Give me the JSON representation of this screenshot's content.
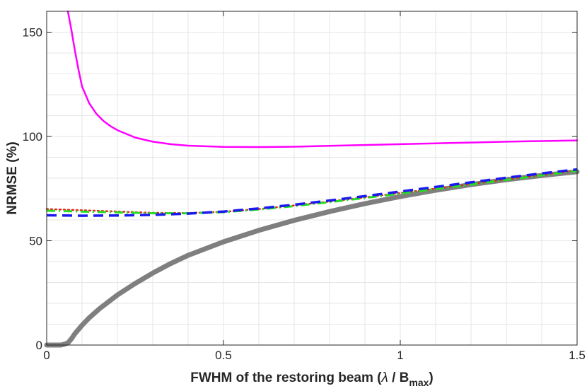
{
  "chart_data": {
    "type": "line",
    "title": "",
    "xlabel_main": "FWHM of the restoring beam (",
    "xlabel_lambda": "λ",
    "xlabel_mid": " / B",
    "xlabel_sub": "max",
    "xlabel_end": ")",
    "ylabel": "NRMSE (%)",
    "xlim": [
      0,
      1.5
    ],
    "ylim": [
      0,
      160
    ],
    "grid": true,
    "xticks": [
      0,
      0.5,
      1,
      1.5
    ],
    "xtick_labels": [
      "0",
      "0.5",
      "1",
      "1.5"
    ],
    "yticks": [
      0,
      50,
      100,
      150
    ],
    "ytick_labels": [
      "0",
      "50",
      "100",
      "150"
    ],
    "series": [
      {
        "name": "magenta",
        "color": "#ff00ff",
        "style": "solid",
        "x": [
          0.06,
          0.07,
          0.08,
          0.09,
          0.1,
          0.12,
          0.14,
          0.16,
          0.18,
          0.2,
          0.25,
          0.3,
          0.35,
          0.4,
          0.5,
          0.6,
          0.7,
          0.8,
          0.9,
          1.0,
          1.1,
          1.2,
          1.3,
          1.4,
          1.5
        ],
        "y": [
          160,
          151,
          141,
          132,
          124,
          116,
          111,
          107.5,
          105,
          103,
          99.5,
          97.5,
          96.3,
          95.6,
          95.0,
          94.9,
          95.1,
          95.5,
          95.9,
          96.3,
          96.7,
          97.1,
          97.5,
          97.8,
          98.1
        ]
      },
      {
        "name": "red",
        "color": "#e8201a",
        "style": "dotted",
        "x": [
          0,
          0.1,
          0.2,
          0.3,
          0.4,
          0.5,
          0.6,
          0.7,
          0.8,
          0.9,
          1.0,
          1.1,
          1.2,
          1.3,
          1.4,
          1.5
        ],
        "y": [
          65.2,
          64.6,
          64.0,
          63.4,
          63.3,
          63.9,
          65.2,
          66.9,
          68.8,
          70.8,
          72.9,
          75.0,
          77.2,
          79.4,
          81.6,
          83.8
        ]
      },
      {
        "name": "green",
        "color": "#22e022",
        "style": "dashdot",
        "x": [
          0,
          0.1,
          0.2,
          0.3,
          0.4,
          0.5,
          0.6,
          0.7,
          0.8,
          0.9,
          1.0,
          1.1,
          1.2,
          1.3,
          1.4,
          1.5
        ],
        "y": [
          64.4,
          64.0,
          63.6,
          63.2,
          63.2,
          63.7,
          65.0,
          66.6,
          68.5,
          70.5,
          72.6,
          74.8,
          77.0,
          79.2,
          81.4,
          83.6
        ]
      },
      {
        "name": "blue",
        "color": "#1a1aee",
        "style": "dashed",
        "x": [
          0,
          0.1,
          0.2,
          0.3,
          0.4,
          0.5,
          0.6,
          0.7,
          0.8,
          0.9,
          1.0,
          1.1,
          1.2,
          1.3,
          1.4,
          1.5
        ],
        "y": [
          62.2,
          62.0,
          62.1,
          62.4,
          63.0,
          64.0,
          65.5,
          67.3,
          69.3,
          71.4,
          73.6,
          75.8,
          78.0,
          80.2,
          82.3,
          84.2
        ]
      },
      {
        "name": "gray",
        "color": "#7f7f7f",
        "style": "thick",
        "x": [
          0,
          0.04,
          0.05,
          0.06,
          0.07,
          0.08,
          0.1,
          0.12,
          0.15,
          0.2,
          0.25,
          0.3,
          0.35,
          0.4,
          0.5,
          0.6,
          0.7,
          0.8,
          0.9,
          1.0,
          1.1,
          1.2,
          1.3,
          1.4,
          1.5
        ],
        "y": [
          0,
          0,
          0.4,
          1.0,
          3.0,
          5.5,
          9.5,
          13,
          17.5,
          24,
          29.5,
          34.5,
          39,
          43,
          49.5,
          55,
          59.8,
          64,
          67.8,
          71.2,
          74.2,
          76.9,
          79.3,
          81.3,
          83.1
        ]
      }
    ]
  }
}
